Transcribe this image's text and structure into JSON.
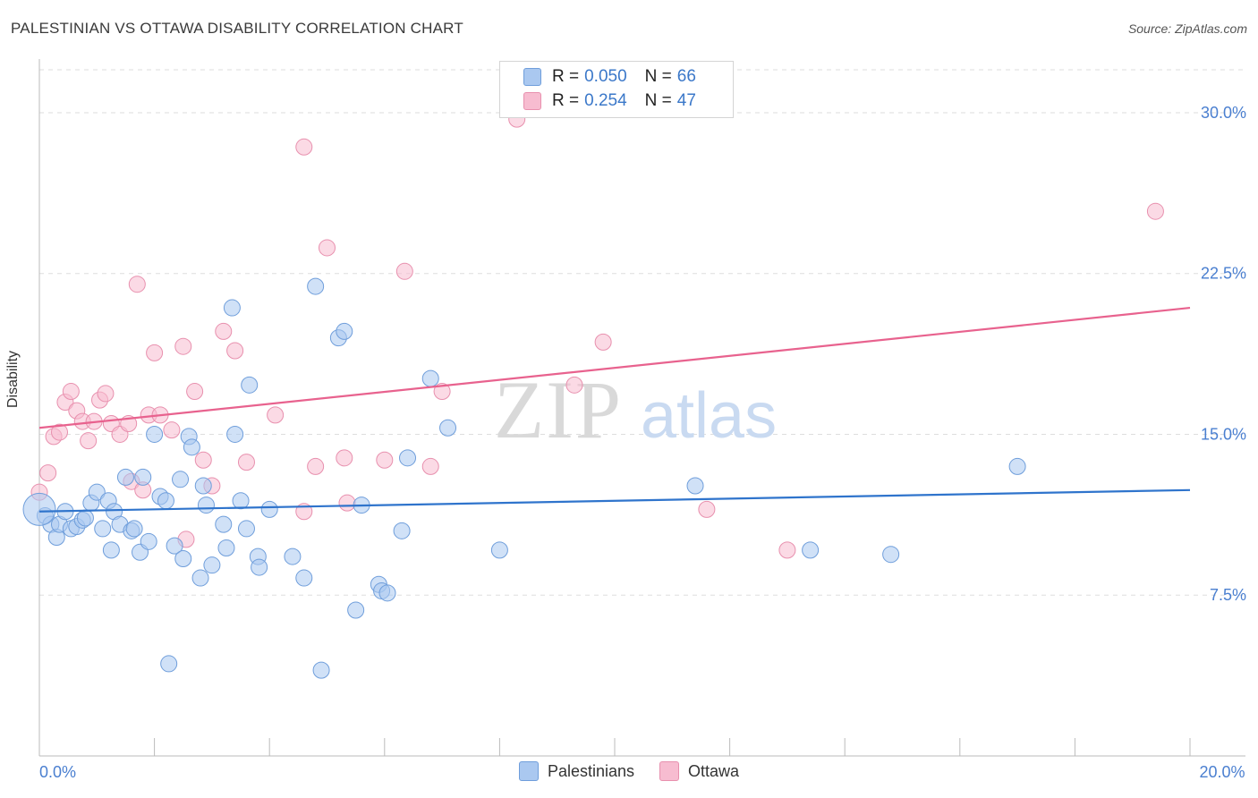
{
  "header": {
    "title": "PALESTINIAN VS OTTAWA DISABILITY CORRELATION CHART",
    "source": "Source: ZipAtlas.com"
  },
  "watermark": {
    "part1": "ZIP",
    "part2": "atlas"
  },
  "legend_top": {
    "rows": [
      {
        "r_label": "R =",
        "r_value": "0.050",
        "n_label": "N =",
        "n_value": "66",
        "color": "#aac8f0"
      },
      {
        "r_label": "R =",
        "r_value": "0.254",
        "n_label": "N =",
        "n_value": "47",
        "color": "#f7bcd0"
      }
    ]
  },
  "legend_bottom": [
    {
      "label": "Palestinians",
      "color": "#aac8f0"
    },
    {
      "label": "Ottawa",
      "color": "#f7bcd0"
    }
  ],
  "colors": {
    "blue_fill": "#aac8f0",
    "blue_stroke": "#6f9edb",
    "blue_line": "#2f74cc",
    "pink_fill": "#f7bcd0",
    "pink_stroke": "#e890ae",
    "pink_line": "#e8628e",
    "axis_text": "#4a7fd0",
    "grid": "#dedede"
  },
  "chart_data": {
    "type": "scatter",
    "title": "PALESTINIAN VS OTTAWA DISABILITY CORRELATION CHART",
    "xlabel": "",
    "ylabel": "Disability",
    "xlim": [
      0,
      20
    ],
    "ylim": [
      0,
      32
    ],
    "y_ticks": [
      {
        "value": 7.5,
        "label": "7.5%"
      },
      {
        "value": 15.0,
        "label": "15.0%"
      },
      {
        "value": 22.5,
        "label": "22.5%"
      },
      {
        "value": 30.0,
        "label": "30.0%"
      }
    ],
    "x_tick_labels": [
      {
        "value": 0,
        "label": "0.0%"
      },
      {
        "value": 20,
        "label": "20.0%"
      }
    ],
    "x_minor_ticks": [
      0,
      2,
      4,
      6,
      8,
      10,
      12,
      14,
      16,
      18,
      20
    ],
    "series": [
      {
        "name": "Palestinians",
        "r": 0.05,
        "n": 66,
        "trend": [
          [
            0,
            11.4
          ],
          [
            20,
            12.4
          ]
        ],
        "points": [
          [
            0.1,
            11.2
          ],
          [
            0.2,
            10.8
          ],
          [
            0.3,
            10.2
          ],
          [
            0.35,
            10.8
          ],
          [
            0.45,
            11.4
          ],
          [
            0.55,
            10.6
          ],
          [
            0.65,
            10.7
          ],
          [
            0.75,
            11.0
          ],
          [
            0.8,
            11.1
          ],
          [
            0.9,
            11.8
          ],
          [
            1.0,
            12.3
          ],
          [
            1.1,
            10.6
          ],
          [
            1.2,
            11.9
          ],
          [
            1.25,
            9.6
          ],
          [
            1.3,
            11.4
          ],
          [
            1.4,
            10.8
          ],
          [
            1.5,
            13.0
          ],
          [
            1.6,
            10.5
          ],
          [
            1.65,
            10.6
          ],
          [
            1.75,
            9.5
          ],
          [
            1.8,
            13.0
          ],
          [
            1.9,
            10.0
          ],
          [
            2.0,
            15.0
          ],
          [
            2.1,
            12.1
          ],
          [
            2.2,
            11.9
          ],
          [
            2.25,
            4.3
          ],
          [
            2.35,
            9.8
          ],
          [
            2.45,
            12.9
          ],
          [
            2.5,
            9.2
          ],
          [
            2.6,
            14.9
          ],
          [
            2.65,
            14.4
          ],
          [
            2.8,
            8.3
          ],
          [
            2.85,
            12.6
          ],
          [
            2.9,
            11.7
          ],
          [
            3.0,
            8.9
          ],
          [
            3.2,
            10.8
          ],
          [
            3.25,
            9.7
          ],
          [
            3.35,
            20.9
          ],
          [
            3.4,
            15.0
          ],
          [
            3.5,
            11.9
          ],
          [
            3.6,
            10.6
          ],
          [
            3.65,
            17.3
          ],
          [
            3.8,
            9.3
          ],
          [
            3.82,
            8.8
          ],
          [
            4.0,
            11.5
          ],
          [
            4.4,
            9.3
          ],
          [
            4.6,
            8.3
          ],
          [
            4.8,
            21.9
          ],
          [
            4.9,
            4.0
          ],
          [
            5.2,
            19.5
          ],
          [
            5.3,
            19.8
          ],
          [
            5.5,
            6.8
          ],
          [
            5.6,
            11.7
          ],
          [
            5.9,
            8.0
          ],
          [
            5.95,
            7.7
          ],
          [
            6.05,
            7.6
          ],
          [
            6.3,
            10.5
          ],
          [
            6.4,
            13.9
          ],
          [
            6.8,
            17.6
          ],
          [
            7.1,
            15.3
          ],
          [
            8.0,
            9.6
          ],
          [
            11.4,
            12.6
          ],
          [
            13.4,
            9.6
          ],
          [
            14.8,
            9.4
          ],
          [
            17.0,
            13.5
          ],
          [
            0.0,
            11.5
          ]
        ]
      },
      {
        "name": "Ottawa",
        "r": 0.254,
        "n": 47,
        "trend": [
          [
            0,
            15.3
          ],
          [
            20,
            20.9
          ]
        ],
        "points": [
          [
            0.0,
            12.3
          ],
          [
            0.15,
            13.2
          ],
          [
            0.25,
            14.9
          ],
          [
            0.35,
            15.1
          ],
          [
            0.45,
            16.5
          ],
          [
            0.55,
            17.0
          ],
          [
            0.65,
            16.1
          ],
          [
            0.75,
            15.6
          ],
          [
            0.85,
            14.7
          ],
          [
            0.95,
            15.6
          ],
          [
            1.05,
            16.6
          ],
          [
            1.15,
            16.9
          ],
          [
            1.25,
            15.5
          ],
          [
            1.4,
            15.0
          ],
          [
            1.55,
            15.5
          ],
          [
            1.6,
            12.8
          ],
          [
            1.7,
            22.0
          ],
          [
            1.8,
            12.4
          ],
          [
            1.9,
            15.9
          ],
          [
            2.0,
            18.8
          ],
          [
            2.1,
            15.9
          ],
          [
            2.3,
            15.2
          ],
          [
            2.5,
            19.1
          ],
          [
            2.55,
            10.1
          ],
          [
            2.7,
            17.0
          ],
          [
            2.85,
            13.8
          ],
          [
            3.0,
            12.6
          ],
          [
            3.2,
            19.8
          ],
          [
            3.4,
            18.9
          ],
          [
            3.6,
            13.7
          ],
          [
            4.1,
            15.9
          ],
          [
            4.6,
            11.4
          ],
          [
            4.6,
            28.4
          ],
          [
            4.8,
            13.5
          ],
          [
            5.0,
            23.7
          ],
          [
            5.3,
            13.9
          ],
          [
            5.35,
            11.8
          ],
          [
            6.0,
            13.8
          ],
          [
            6.35,
            22.6
          ],
          [
            6.8,
            13.5
          ],
          [
            7.0,
            17.0
          ],
          [
            8.3,
            29.7
          ],
          [
            9.3,
            17.3
          ],
          [
            9.8,
            19.3
          ],
          [
            11.6,
            11.5
          ],
          [
            13.0,
            9.6
          ],
          [
            19.4,
            25.4
          ]
        ]
      }
    ]
  }
}
